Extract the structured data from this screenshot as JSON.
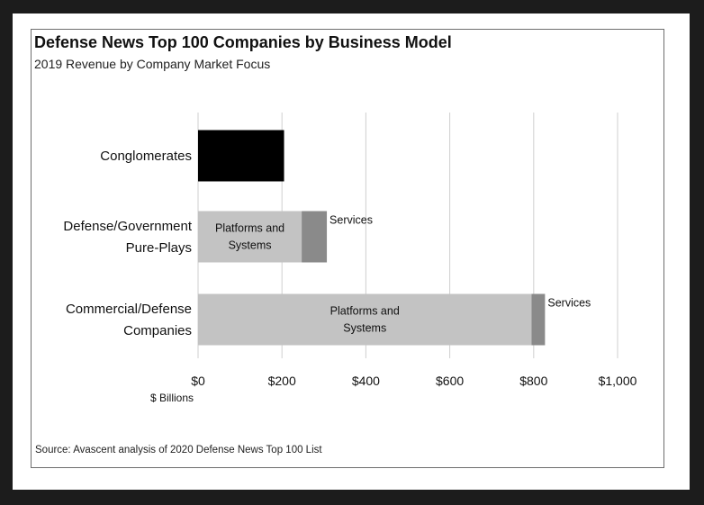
{
  "chart_data": {
    "type": "bar",
    "orientation": "horizontal",
    "stacked": true,
    "title": "Defense News Top 100 Companies by Business Model",
    "subtitle": "2019 Revenue by Company Market Focus",
    "xlabel": "$ Billions",
    "xlim": [
      0,
      1000
    ],
    "xticks": [
      0,
      200,
      400,
      600,
      800,
      1000
    ],
    "xtick_labels": [
      "$0",
      "$200",
      "$400",
      "$600",
      "$800",
      "$1,000"
    ],
    "grid": "vertical",
    "categories": [
      [
        "Conglomerates"
      ],
      [
        "Defense/Government",
        "Pure-Plays"
      ],
      [
        "Commercial/Defense",
        "Companies"
      ]
    ],
    "series": [
      {
        "values": [
          205,
          0,
          0
        ],
        "color": "#000000",
        "labels": [
          "",
          "",
          ""
        ],
        "label_position": "inside"
      },
      {
        "values": [
          0,
          247,
          795
        ],
        "color": "#c3c3c3",
        "labels": [
          "",
          "Platforms and\nSystems",
          "Platforms and\nSystems"
        ],
        "label_position": "inside"
      },
      {
        "values": [
          0,
          60,
          32
        ],
        "color": "#8a8a8a",
        "labels": [
          "",
          "Services",
          "Services"
        ],
        "label_position": "outside-top"
      }
    ],
    "source": "Source: Avascent analysis of 2020 Defense News Top 100 List"
  }
}
